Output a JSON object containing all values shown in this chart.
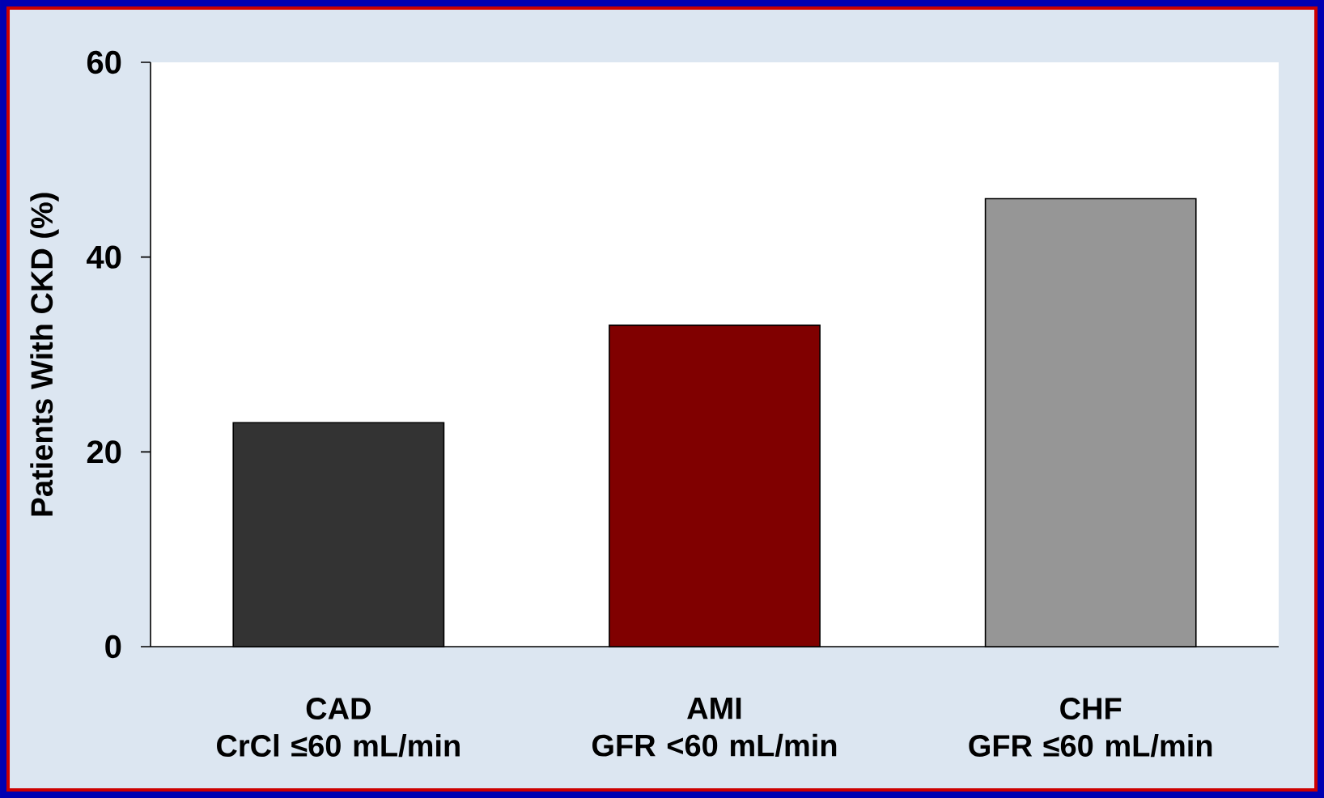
{
  "chart_data": {
    "type": "bar",
    "ylabel": "Patients With CKD (%)",
    "categories": [
      "CAD CrCl ≤60 mL/min",
      "AMI GFR <60 mL/min",
      "CHF GFR ≤60 mL/min"
    ],
    "values": [
      23,
      33,
      46
    ],
    "colors": [
      "#333333",
      "#800000",
      "#969696"
    ],
    "ylim": [
      0,
      60
    ],
    "yticks": [
      0,
      20,
      40,
      60
    ]
  }
}
